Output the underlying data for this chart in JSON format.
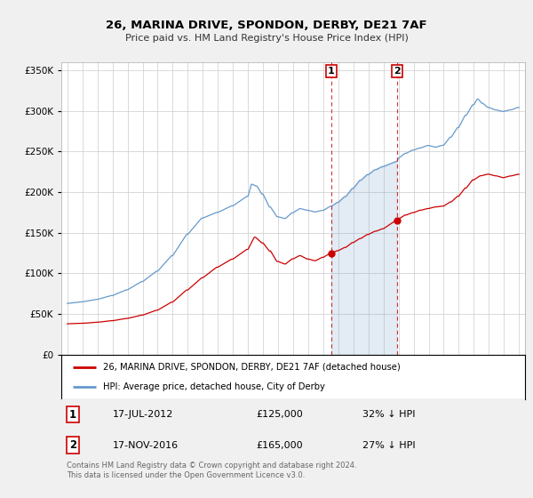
{
  "title": "26, MARINA DRIVE, SPONDON, DERBY, DE21 7AF",
  "subtitle": "Price paid vs. HM Land Registry's House Price Index (HPI)",
  "legend_line1": "26, MARINA DRIVE, SPONDON, DERBY, DE21 7AF (detached house)",
  "legend_line2": "HPI: Average price, detached house, City of Derby",
  "annotation_note": "Contains HM Land Registry data © Crown copyright and database right 2024.\nThis data is licensed under the Open Government Licence v3.0.",
  "sale1_date": "17-JUL-2012",
  "sale1_price": "£125,000",
  "sale1_note": "32% ↓ HPI",
  "sale2_date": "17-NOV-2016",
  "sale2_price": "£165,000",
  "sale2_note": "27% ↓ HPI",
  "red_color": "#cc0000",
  "blue_color": "#6699cc",
  "blue_shade_color": "#ddeeff",
  "background_color": "#f0f0f0",
  "plot_bg_color": "#ffffff",
  "ylim": [
    0,
    360000
  ],
  "yticks": [
    0,
    50000,
    100000,
    150000,
    200000,
    250000,
    300000,
    350000
  ],
  "sale1_x": 2012.54,
  "sale1_y": 125000,
  "sale2_x": 2016.88,
  "sale2_y": 165000,
  "xlim_left": 1994.6,
  "xlim_right": 2025.4
}
